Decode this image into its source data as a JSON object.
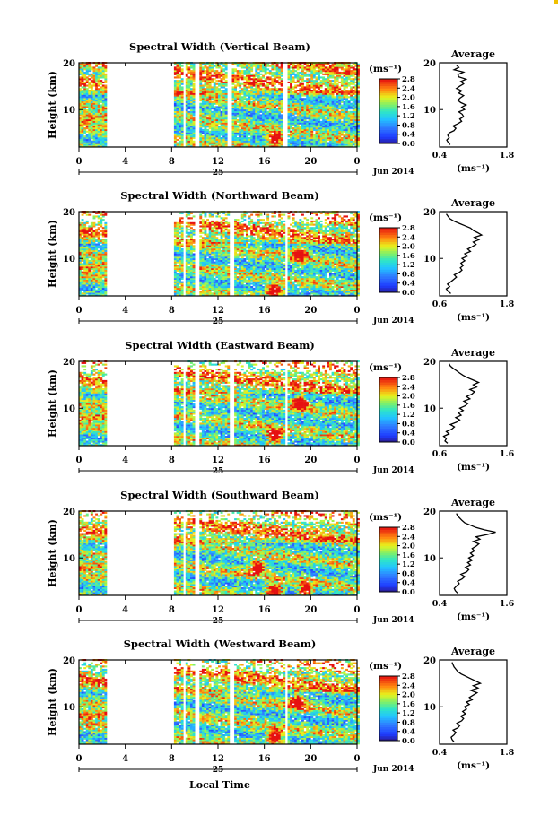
{
  "footer": {
    "xlabel": "Local Time"
  },
  "chart_data": [
    {
      "type": "heatmap",
      "panel": "vertical",
      "title": "Spectral Width (Vertical Beam)",
      "ylabel": "Height (km)",
      "ylim": [
        2,
        20
      ],
      "yticks": [
        "20",
        "10"
      ],
      "xlim": [
        0,
        24
      ],
      "xticks": [
        "0",
        "4",
        "8",
        "12",
        "16",
        "20",
        "0"
      ],
      "date_label": "25",
      "month_label": "Jun 2014",
      "colorbar": {
        "label": "(ms⁻¹)",
        "ticks": [
          "2.8",
          "2.4",
          "2.0",
          "1.6",
          "1.2",
          "0.8",
          "0.4",
          "0.0"
        ],
        "range": [
          0,
          2.8
        ]
      },
      "gaps_hours": [
        [
          2.5,
          8.2
        ],
        [
          9.0,
          9.25
        ],
        [
          10.0,
          10.3
        ],
        [
          12.7,
          13.1
        ],
        [
          17.6,
          17.9
        ]
      ],
      "peak_events": [
        {
          "time": 16.8,
          "height": 3.5,
          "value": 2.6
        }
      ],
      "average": {
        "title": "Average",
        "xlabel": "(ms⁻¹)",
        "xlim": [
          0.4,
          1.8
        ],
        "xticks": [
          "0.4",
          "1.8"
        ],
        "yticks": [
          "20",
          "10"
        ],
        "height": [
          2.5,
          3,
          3.5,
          4,
          4.5,
          5,
          5.5,
          6,
          6.5,
          7,
          7.5,
          8,
          8.5,
          9,
          9.5,
          10,
          10.5,
          11,
          11.5,
          12,
          12.5,
          13,
          13.5,
          14,
          14.5,
          15,
          15.5,
          16,
          16.5,
          17,
          17.5,
          18,
          18.5,
          19,
          19.5
        ],
        "width": [
          0.62,
          0.58,
          0.55,
          0.6,
          0.57,
          0.6,
          0.7,
          0.74,
          0.68,
          0.78,
          0.86,
          0.82,
          0.9,
          0.87,
          0.8,
          0.92,
          0.86,
          0.95,
          0.84,
          0.78,
          0.83,
          0.9,
          0.8,
          0.86,
          0.75,
          0.82,
          0.9,
          0.84,
          0.95,
          0.8,
          0.78,
          0.9,
          0.7,
          0.8,
          0.75
        ]
      }
    },
    {
      "type": "heatmap",
      "panel": "northward",
      "title": "Spectral Width (Northward Beam)",
      "ylabel": "Height (km)",
      "ylim": [
        2,
        20
      ],
      "yticks": [
        "20",
        "10"
      ],
      "xlim": [
        0,
        24
      ],
      "xticks": [
        "0",
        "4",
        "8",
        "12",
        "16",
        "20",
        "0"
      ],
      "date_label": "25",
      "month_label": "Jun 2014",
      "colorbar": {
        "label": "(ms⁻¹)",
        "ticks": [
          "2.8",
          "2.4",
          "2.0",
          "1.6",
          "1.2",
          "0.8",
          "0.4",
          "0.0"
        ],
        "range": [
          0,
          2.8
        ]
      },
      "gaps_hours": [
        [
          2.5,
          8.2
        ],
        [
          9.0,
          9.2
        ],
        [
          10.0,
          10.3
        ],
        [
          13.0,
          13.3
        ],
        [
          17.7,
          18.0
        ]
      ],
      "peak_events": [
        {
          "time": 16.8,
          "height": 3.0,
          "value": 2.5
        },
        {
          "time": 19.0,
          "height": 11.0,
          "value": 2.2
        }
      ],
      "average": {
        "title": "Average",
        "xlabel": "(ms⁻¹)",
        "xlim": [
          0.6,
          1.8
        ],
        "xticks": [
          "0.6",
          "1.8"
        ],
        "yticks": [
          "20",
          "10"
        ],
        "height": [
          2.5,
          3,
          3.5,
          4,
          4.5,
          5,
          5.5,
          6,
          6.5,
          7,
          7.5,
          8,
          8.5,
          9,
          9.5,
          10,
          10.5,
          11,
          11.5,
          12,
          12.5,
          13,
          13.5,
          14,
          14.5,
          15,
          15.5,
          16,
          16.5,
          17,
          17.5,
          18,
          18.5,
          19,
          19.5
        ],
        "width": [
          0.8,
          0.75,
          0.72,
          0.78,
          0.74,
          0.8,
          0.85,
          0.9,
          0.86,
          0.95,
          1.0,
          0.97,
          1.02,
          0.98,
          1.05,
          1.0,
          1.1,
          1.05,
          1.15,
          1.1,
          1.18,
          1.25,
          1.2,
          1.3,
          1.22,
          1.35,
          1.28,
          1.2,
          1.15,
          1.05,
          0.95,
          0.85,
          0.78,
          0.75,
          0.72
        ]
      }
    },
    {
      "type": "heatmap",
      "panel": "eastward",
      "title": "Spectral Width (Eastward Beam)",
      "ylabel": "Height (km)",
      "ylim": [
        2,
        20
      ],
      "yticks": [
        "20",
        "10"
      ],
      "xlim": [
        0,
        24
      ],
      "xticks": [
        "0",
        "4",
        "8",
        "12",
        "16",
        "20",
        "0"
      ],
      "date_label": "25",
      "month_label": "Jun 2014",
      "colorbar": {
        "label": "(ms⁻¹)",
        "ticks": [
          "2.8",
          "2.4",
          "2.0",
          "1.6",
          "1.2",
          "0.8",
          "0.4",
          "0.0"
        ],
        "range": [
          0,
          2.8
        ]
      },
      "gaps_hours": [
        [
          2.5,
          8.2
        ],
        [
          9.0,
          9.2
        ],
        [
          10.0,
          10.3
        ],
        [
          13.0,
          13.3
        ],
        [
          17.7,
          18.0
        ]
      ],
      "peak_events": [
        {
          "time": 16.8,
          "height": 4.0,
          "value": 2.7
        },
        {
          "time": 19.0,
          "height": 11.0,
          "value": 2.3
        }
      ],
      "average": {
        "title": "Average",
        "xlabel": "(ms⁻¹)",
        "xlim": [
          0.6,
          1.6
        ],
        "xticks": [
          "0.6",
          "1.6"
        ],
        "yticks": [
          "20",
          "10"
        ],
        "height": [
          2.5,
          3,
          3.5,
          4,
          4.5,
          5,
          5.5,
          6,
          6.5,
          7,
          7.5,
          8,
          8.5,
          9,
          9.5,
          10,
          10.5,
          11,
          11.5,
          12,
          12.5,
          13,
          13.5,
          14,
          14.5,
          15,
          15.5,
          16,
          16.5,
          17,
          17.5,
          18,
          18.5,
          19,
          19.5
        ],
        "width": [
          0.72,
          0.68,
          0.7,
          0.66,
          0.74,
          0.7,
          0.78,
          0.82,
          0.76,
          0.85,
          0.9,
          0.84,
          0.92,
          0.88,
          0.95,
          0.9,
          0.98,
          1.02,
          0.96,
          1.05,
          1.0,
          1.08,
          1.12,
          1.05,
          1.15,
          1.1,
          1.18,
          1.1,
          1.02,
          0.95,
          0.9,
          0.85,
          0.8,
          0.76,
          0.74
        ]
      }
    },
    {
      "type": "heatmap",
      "panel": "southward",
      "title": "Spectral Width (Southward Beam)",
      "ylabel": "Height (km)",
      "ylim": [
        2,
        20
      ],
      "yticks": [
        "20",
        "10"
      ],
      "xlim": [
        0,
        24
      ],
      "xticks": [
        "0",
        "4",
        "8",
        "12",
        "16",
        "20",
        "0"
      ],
      "date_label": "25",
      "month_label": "Jun 2014",
      "colorbar": {
        "label": "(ms⁻¹)",
        "ticks": [
          "2.8",
          "2.4",
          "2.0",
          "1.6",
          "1.2",
          "0.8",
          "0.4",
          "0.0"
        ],
        "range": [
          0,
          2.8
        ]
      },
      "gaps_hours": [
        [
          2.5,
          8.2
        ],
        [
          9.0,
          9.2
        ],
        [
          10.0,
          10.3
        ]
      ],
      "peak_events": [
        {
          "time": 16.8,
          "height": 3.0,
          "value": 2.5
        },
        {
          "time": 15.3,
          "height": 8.0,
          "value": 2.2
        },
        {
          "time": 19.5,
          "height": 3.0,
          "value": 2.0
        }
      ],
      "average": {
        "title": "Average",
        "xlabel": "(ms⁻¹)",
        "xlim": [
          0.4,
          1.6
        ],
        "xticks": [
          "0.4",
          "1.6"
        ],
        "yticks": [
          "20",
          "10"
        ],
        "height": [
          2.5,
          3,
          3.5,
          4,
          4.5,
          5,
          5.5,
          6,
          6.5,
          7,
          7.5,
          8,
          8.5,
          9,
          9.5,
          10,
          10.5,
          11,
          11.5,
          12,
          12.5,
          13,
          13.5,
          14,
          14.5,
          15,
          15.5,
          16,
          16.5,
          17,
          17.5,
          18,
          18.5,
          19,
          19.5
        ],
        "width": [
          0.72,
          0.68,
          0.66,
          0.7,
          0.75,
          0.72,
          0.8,
          0.85,
          0.78,
          0.88,
          0.92,
          0.86,
          0.95,
          0.9,
          0.98,
          0.92,
          1.0,
          0.95,
          1.02,
          0.98,
          1.05,
          1.1,
          1.0,
          1.12,
          1.05,
          1.25,
          1.4,
          1.2,
          1.05,
          0.95,
          0.85,
          0.8,
          0.76,
          0.72,
          0.7
        ]
      }
    },
    {
      "type": "heatmap",
      "panel": "westward",
      "title": "Spectral Width (Westward Beam)",
      "ylabel": "Height (km)",
      "ylim": [
        2,
        20
      ],
      "yticks": [
        "20",
        "10"
      ],
      "xlim": [
        0,
        24
      ],
      "xticks": [
        "0",
        "4",
        "8",
        "12",
        "16",
        "20",
        "0"
      ],
      "date_label": "25",
      "month_label": "Jun 2014",
      "colorbar": {
        "label": "(ms⁻¹)",
        "ticks": [
          "2.8",
          "2.4",
          "2.0",
          "1.6",
          "1.2",
          "0.8",
          "0.4",
          "0.0"
        ],
        "range": [
          0,
          2.8
        ]
      },
      "gaps_hours": [
        [
          2.5,
          8.2
        ],
        [
          9.0,
          9.2
        ],
        [
          10.0,
          10.3
        ],
        [
          13.0,
          13.3
        ],
        [
          17.7,
          18.0
        ]
      ],
      "peak_events": [
        {
          "time": 16.8,
          "height": 3.5,
          "value": 2.6
        },
        {
          "time": 18.8,
          "height": 11.0,
          "value": 2.3
        }
      ],
      "average": {
        "title": "Average",
        "xlabel": "(ms⁻¹)",
        "xlim": [
          0.4,
          1.8
        ],
        "xticks": [
          "0.4",
          "1.8"
        ],
        "yticks": [
          "20",
          "10"
        ],
        "height": [
          2.5,
          3,
          3.5,
          4,
          4.5,
          5,
          5.5,
          6,
          6.5,
          7,
          7.5,
          8,
          8.5,
          9,
          9.5,
          10,
          10.5,
          11,
          11.5,
          12,
          12.5,
          13,
          13.5,
          14,
          14.5,
          15,
          15.5,
          16,
          16.5,
          17,
          17.5,
          18,
          18.5,
          19,
          19.5
        ],
        "width": [
          0.7,
          0.66,
          0.64,
          0.7,
          0.74,
          0.68,
          0.78,
          0.82,
          0.76,
          0.86,
          0.9,
          0.84,
          0.94,
          0.88,
          0.96,
          0.92,
          1.02,
          0.96,
          1.08,
          1.02,
          1.1,
          1.18,
          1.05,
          1.2,
          1.1,
          1.25,
          1.15,
          1.05,
          0.95,
          0.85,
          0.78,
          0.74,
          0.7,
          0.68,
          0.66
        ]
      }
    }
  ]
}
